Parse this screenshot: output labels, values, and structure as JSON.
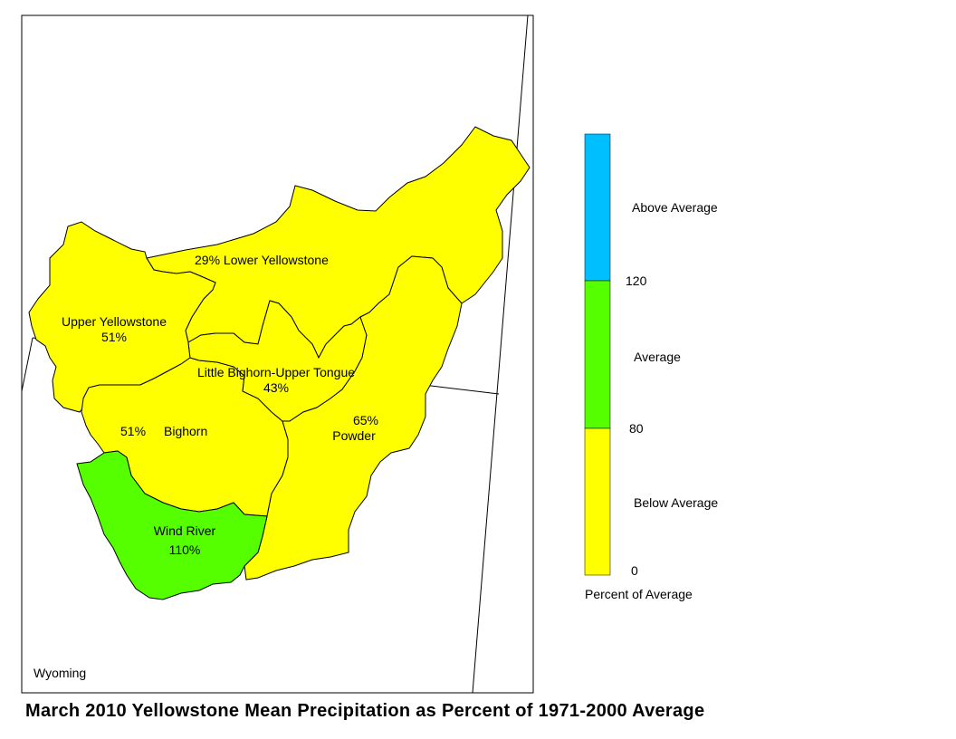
{
  "title": "March 2010 Yellowstone Mean Precipitation as Percent of 1971-2000 Average",
  "state_label": "Wyoming",
  "basins": [
    {
      "name": "Lower Yellowstone",
      "label": "29% Lower Yellowstone",
      "percent": 29,
      "category": "Below Average"
    },
    {
      "name": "Upper Yellowstone",
      "label": "Upper Yellowstone",
      "value_label": "51%",
      "percent": 51,
      "category": "Below Average"
    },
    {
      "name": "Little Bighorn-Upper Tongue",
      "label": "Little Bighorn-Upper Tongue",
      "value_label": "43%",
      "percent": 43,
      "category": "Below Average"
    },
    {
      "name": "Bighorn",
      "label": "Bighorn",
      "value_label": "51%",
      "percent": 51,
      "category": "Below Average"
    },
    {
      "name": "Powder",
      "label": "Powder",
      "value_label": "65%",
      "percent": 65,
      "category": "Below Average"
    },
    {
      "name": "Wind River",
      "label": "Wind River",
      "value_label": "110%",
      "percent": 110,
      "category": "Average"
    }
  ],
  "legend": {
    "title": "Percent of Average",
    "categories": [
      {
        "label": "Above Average",
        "color": "#00bfff"
      },
      {
        "label": "Average",
        "color": "#55ff00"
      },
      {
        "label": "Below Average",
        "color": "#ffff00"
      }
    ],
    "breaks": [
      "120",
      "80",
      "0"
    ]
  },
  "colors": {
    "below": "#ffff00",
    "average": "#55ff00",
    "above": "#00bfff",
    "border": "#000000"
  }
}
